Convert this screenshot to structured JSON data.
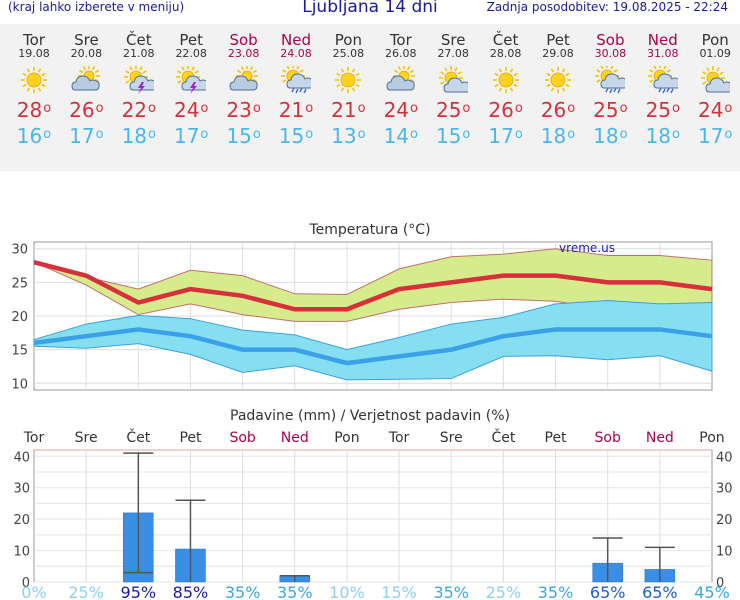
{
  "header": {
    "left": "(kraj lahko izberete v meniju)",
    "title": "Ljubljana 14 dni",
    "right": "Zadnja posodobitev: 19.08.2025 - 22:24"
  },
  "days": [
    {
      "name": "Tor",
      "date": "19.08",
      "weekend": false,
      "icon": "sun-icon",
      "max": "28",
      "min": "16"
    },
    {
      "name": "Sre",
      "date": "20.08",
      "weekend": false,
      "icon": "cloud-sun-icon",
      "max": "26",
      "min": "17"
    },
    {
      "name": "Čet",
      "date": "21.08",
      "weekend": false,
      "icon": "sun-storm-icon",
      "max": "22",
      "min": "18"
    },
    {
      "name": "Pet",
      "date": "22.08",
      "weekend": false,
      "icon": "sun-storm-icon",
      "max": "24",
      "min": "17"
    },
    {
      "name": "Sob",
      "date": "23.08",
      "weekend": true,
      "icon": "cloud-sun-icon",
      "max": "23",
      "min": "15"
    },
    {
      "name": "Ned",
      "date": "24.08",
      "weekend": true,
      "icon": "sun-rain-icon",
      "max": "21",
      "min": "15"
    },
    {
      "name": "Pon",
      "date": "25.08",
      "weekend": false,
      "icon": "sun-icon",
      "max": "21",
      "min": "13"
    },
    {
      "name": "Tor",
      "date": "26.08",
      "weekend": false,
      "icon": "cloud-sun-icon",
      "max": "24",
      "min": "14"
    },
    {
      "name": "Sre",
      "date": "27.08",
      "weekend": false,
      "icon": "sun-cloud-icon",
      "max": "25",
      "min": "15"
    },
    {
      "name": "Čet",
      "date": "28.08",
      "weekend": false,
      "icon": "sun-icon",
      "max": "26",
      "min": "17"
    },
    {
      "name": "Pet",
      "date": "29.08",
      "weekend": false,
      "icon": "sun-icon",
      "max": "26",
      "min": "18"
    },
    {
      "name": "Sob",
      "date": "30.08",
      "weekend": true,
      "icon": "sun-rain-icon",
      "max": "25",
      "min": "18"
    },
    {
      "name": "Ned",
      "date": "31.08",
      "weekend": true,
      "icon": "sun-rain-icon",
      "max": "25",
      "min": "18"
    },
    {
      "name": "Pon",
      "date": "01.09",
      "weekend": false,
      "icon": "sun-cloud-icon",
      "max": "24",
      "min": "17"
    }
  ],
  "colors": {
    "max": "#d8303a",
    "min": "#4ab6f0",
    "weekend": "#b0004a",
    "precip_bar": "#3a8ee6"
  },
  "chart_data": [
    {
      "type": "line",
      "title": "Temperatura (°C)",
      "watermark": "vreme.us",
      "x": [
        "Tor",
        "Sre",
        "Čet",
        "Pet",
        "Sob",
        "Ned",
        "Pon",
        "Tor",
        "Sre",
        "Čet",
        "Pet",
        "Sob",
        "Ned",
        "Pon"
      ],
      "ylim": [
        9,
        31
      ],
      "yticks": [
        10,
        15,
        20,
        25,
        30
      ],
      "grid": true,
      "series": [
        {
          "values": [
            28,
            26,
            22,
            24,
            23,
            21,
            21,
            24,
            25,
            26,
            26,
            25,
            25,
            24
          ]
        },
        {
          "values": [
            16,
            17,
            18,
            17,
            15,
            15,
            13,
            14,
            15,
            17,
            18,
            18,
            18,
            17
          ]
        }
      ],
      "bands": [
        {
          "upper": [
            28,
            25.8,
            24,
            26.8,
            26,
            23.3,
            23.2,
            27,
            28.8,
            29.2,
            30,
            29,
            29,
            28.3
          ],
          "lower": [
            28,
            24.6,
            20.2,
            21.8,
            20.2,
            19.2,
            19.2,
            21,
            22,
            22.5,
            22.2,
            21,
            21.8,
            21.6
          ]
        },
        {
          "upper": [
            16.5,
            18.8,
            20.1,
            19.6,
            17.9,
            17.2,
            15,
            16.8,
            18.8,
            19.8,
            21.8,
            22.3,
            21.8,
            22
          ],
          "lower": [
            15.5,
            15.2,
            15.9,
            14.3,
            11.6,
            12.6,
            10.5,
            10.6,
            10.7,
            14,
            14.1,
            13.5,
            14.1,
            11.8
          ]
        }
      ]
    },
    {
      "type": "bar",
      "title": "Padavine (mm) / Verjetnost padavin (%)",
      "categories": [
        "Tor",
        "Sre",
        "Čet",
        "Pet",
        "Sob",
        "Ned",
        "Pon",
        "Tor",
        "Sre",
        "Čet",
        "Pet",
        "Sob",
        "Ned",
        "Pon"
      ],
      "values": [
        0,
        0,
        22,
        10.5,
        0,
        2,
        0,
        0,
        0,
        0,
        0,
        6,
        4,
        0
      ],
      "error_high": [
        0,
        0,
        41,
        26,
        0,
        2,
        0,
        0,
        0,
        0,
        0,
        14,
        11,
        0
      ],
      "error_low": [
        0,
        0,
        3,
        0,
        0,
        0,
        0,
        0,
        0,
        0,
        0,
        0,
        0,
        0
      ],
      "probability": [
        "0%",
        "25%",
        "95%",
        "85%",
        "35%",
        "35%",
        "10%",
        "15%",
        "35%",
        "25%",
        "35%",
        "65%",
        "65%",
        "45%"
      ],
      "ylim": [
        0,
        42
      ],
      "yticks": [
        0,
        10,
        20,
        30,
        40
      ]
    }
  ]
}
